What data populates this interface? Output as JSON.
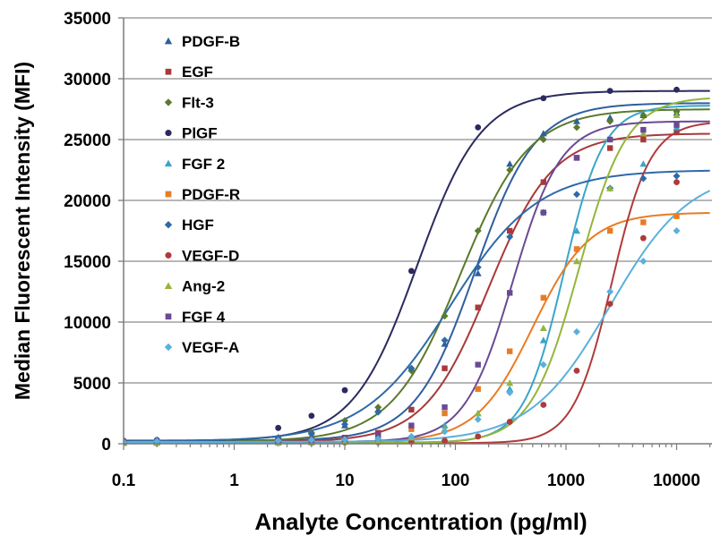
{
  "chart_data": {
    "type": "line",
    "xlabel": "Analyte Concentration (pg/ml)",
    "ylabel": "Median Fluorescent Intensity (MFI)",
    "xscale": "log",
    "xlim": [
      0.1,
      20000
    ],
    "ylim": [
      0,
      35000
    ],
    "x_ticks": [
      {
        "value": 0.1,
        "label": "0.1"
      },
      {
        "value": 1,
        "label": "1"
      },
      {
        "value": 10,
        "label": "10"
      },
      {
        "value": 100,
        "label": "100"
      },
      {
        "value": 1000,
        "label": "1000"
      },
      {
        "value": 10000,
        "label": "10000"
      }
    ],
    "y_ticks": [
      {
        "value": 0,
        "label": "0"
      },
      {
        "value": 5000,
        "label": "5000"
      },
      {
        "value": 10000,
        "label": "10000"
      },
      {
        "value": 15000,
        "label": "15000"
      },
      {
        "value": 20000,
        "label": "20000"
      },
      {
        "value": 25000,
        "label": "25000"
      },
      {
        "value": 30000,
        "label": "30000"
      },
      {
        "value": 35000,
        "label": "35000"
      }
    ],
    "grid": {
      "horizontal": true,
      "vertical": false
    },
    "legend_position": "top-left",
    "series": [
      {
        "name": "PDGF-B",
        "color": "#2e5f9e",
        "marker": "triangle",
        "x": [
          0.1,
          0.2,
          2.5,
          5,
          10,
          20,
          40,
          80,
          160,
          310,
          625,
          1250,
          2500,
          5000,
          10000
        ],
        "y": [
          250,
          250,
          350,
          600,
          1500,
          2800,
          6200,
          8200,
          14000,
          23000,
          25500,
          26500,
          26800,
          27000,
          27200
        ],
        "fit": {
          "min": 250,
          "max": 28000,
          "ec50": 150,
          "hill": 1.6
        }
      },
      {
        "name": "EGF",
        "color": "#a8393a",
        "marker": "square",
        "x": [
          0.1,
          0.2,
          2.5,
          5,
          10,
          20,
          40,
          80,
          160,
          310,
          625,
          1250,
          2500,
          5000,
          10000
        ],
        "y": [
          100,
          150,
          250,
          350,
          500,
          900,
          2800,
          6200,
          11200,
          17500,
          21500,
          23500,
          24300,
          25000,
          25600
        ],
        "fit": {
          "min": 150,
          "max": 25500,
          "ec50": 200,
          "hill": 1.5
        }
      },
      {
        "name": "Flt-3",
        "color": "#5a7a2c",
        "marker": "diamond",
        "x": [
          0.1,
          0.2,
          2.5,
          5,
          10,
          20,
          40,
          80,
          160,
          310,
          625,
          1250,
          2500,
          5000,
          10000
        ],
        "y": [
          200,
          250,
          500,
          900,
          1900,
          3000,
          6000,
          10500,
          17500,
          22500,
          25000,
          26000,
          26500,
          27000,
          27300
        ],
        "fit": {
          "min": 200,
          "max": 27500,
          "ec50": 110,
          "hill": 1.4
        }
      },
      {
        "name": "PlGF",
        "color": "#2a2a5e",
        "marker": "circle",
        "x": [
          0.1,
          0.2,
          2.5,
          5,
          10,
          40,
          160,
          625,
          2500,
          10000
        ],
        "y": [
          250,
          300,
          1300,
          2300,
          4400,
          14200,
          26000,
          28400,
          29000,
          29100
        ],
        "fit": {
          "min": 250,
          "max": 29000,
          "ec50": 45,
          "hill": 1.5
        }
      },
      {
        "name": "FGF 2",
        "color": "#3aa5c8",
        "marker": "triangle",
        "x": [
          0.1,
          0.2,
          2.5,
          5,
          10,
          20,
          40,
          80,
          160,
          310,
          625,
          1250,
          2500,
          5000,
          10000
        ],
        "y": [
          100,
          100,
          150,
          200,
          250,
          350,
          600,
          1500,
          2500,
          4500,
          8500,
          17500,
          21000,
          23000,
          26000
        ],
        "fit": {
          "min": 100,
          "max": 27800,
          "ec50": 950,
          "hill": 2.4
        }
      },
      {
        "name": "PDGF-R",
        "color": "#e87c24",
        "marker": "square",
        "x": [
          0.1,
          0.2,
          2.5,
          5,
          10,
          20,
          40,
          80,
          160,
          310,
          625,
          1250,
          2500,
          5000,
          10000
        ],
        "y": [
          150,
          150,
          200,
          250,
          350,
          600,
          1200,
          2500,
          4500,
          7600,
          12000,
          16000,
          17500,
          18200,
          18700
        ],
        "fit": {
          "min": 150,
          "max": 19000,
          "ec50": 500,
          "hill": 1.7
        }
      },
      {
        "name": "HGF",
        "color": "#2e6aa8",
        "marker": "diamond",
        "x": [
          0.1,
          0.2,
          2.5,
          5,
          10,
          20,
          40,
          80,
          160,
          310,
          625,
          1250,
          2500,
          5000,
          10000
        ],
        "y": [
          200,
          300,
          500,
          800,
          1600,
          2600,
          6200,
          8500,
          14500,
          17000,
          19000,
          20500,
          21000,
          21800,
          22000
        ],
        "fit": {
          "min": 200,
          "max": 22500,
          "ec50": 90,
          "hill": 1.1
        }
      },
      {
        "name": "VEGF-D",
        "color": "#b03a3a",
        "marker": "circle",
        "x": [
          0.1,
          0.2,
          2.5,
          5,
          10,
          20,
          40,
          80,
          160,
          310,
          625,
          1250,
          2500,
          5000,
          10000
        ],
        "y": [
          50,
          50,
          60,
          80,
          100,
          120,
          150,
          250,
          600,
          1800,
          3200,
          6000,
          11500,
          16900,
          21500
        ],
        "fit": {
          "min": 50,
          "max": 26500,
          "ec50": 2600,
          "hill": 2.5
        }
      },
      {
        "name": "Ang-2",
        "color": "#94b53a",
        "marker": "triangle",
        "x": [
          0.1,
          0.2,
          2.5,
          5,
          10,
          20,
          40,
          80,
          160,
          310,
          625,
          1250,
          2500,
          5000,
          10000
        ],
        "y": [
          50,
          60,
          80,
          100,
          150,
          250,
          500,
          1200,
          2500,
          5000,
          9500,
          15000,
          21000,
          25500,
          27000
        ],
        "fit": {
          "min": 60,
          "max": 28500,
          "ec50": 1300,
          "hill": 2.0
        }
      },
      {
        "name": "FGF 4",
        "color": "#6a4a94",
        "marker": "square",
        "x": [
          0.1,
          0.2,
          2.5,
          5,
          10,
          20,
          40,
          80,
          160,
          310,
          625,
          1250,
          2500,
          5000,
          10000
        ],
        "y": [
          150,
          200,
          250,
          300,
          400,
          700,
          1500,
          3000,
          6500,
          12400,
          19000,
          23500,
          25000,
          25800,
          26200
        ],
        "fit": {
          "min": 150,
          "max": 26500,
          "ec50": 330,
          "hill": 2.0
        }
      },
      {
        "name": "VEGF-A",
        "color": "#5ab0dd",
        "marker": "diamond",
        "x": [
          0.1,
          0.2,
          2.5,
          5,
          10,
          20,
          40,
          80,
          160,
          310,
          625,
          1250,
          2500,
          5000,
          10000
        ],
        "y": [
          150,
          200,
          250,
          300,
          350,
          400,
          600,
          1000,
          2000,
          4200,
          6500,
          9200,
          12500,
          15000,
          17500
        ],
        "fit": {
          "min": 150,
          "max": 22500,
          "ec50": 2500,
          "hill": 1.2
        }
      }
    ]
  }
}
